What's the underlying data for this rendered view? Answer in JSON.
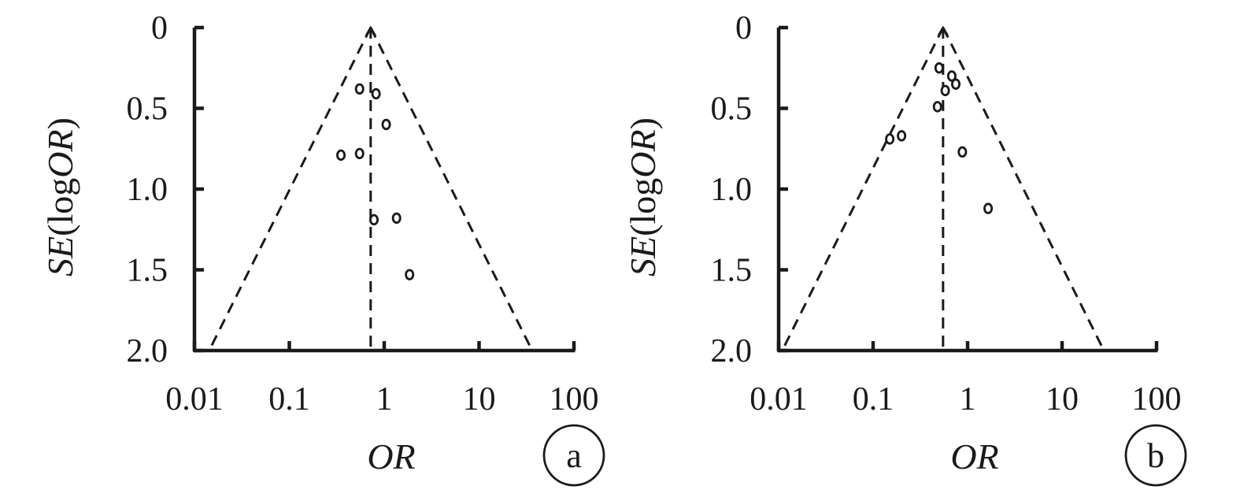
{
  "chart_data": [
    {
      "type": "scatter",
      "panel_label": "a",
      "xlabel": "OR",
      "ylabel": {
        "prefix": "SE",
        "open": "(",
        "log": "log",
        "var": "OR",
        "close": ")"
      },
      "x_scale": "log",
      "xlim": [
        0.01,
        100
      ],
      "ylim": [
        0,
        2.0
      ],
      "y_inverted": true,
      "xticks": [
        0.01,
        0.1,
        1,
        10,
        100
      ],
      "xtick_labels": [
        "0.01",
        "0.1",
        "1",
        "10",
        "100"
      ],
      "yticks": [
        0,
        0.5,
        1.0,
        1.5,
        2.0
      ],
      "ytick_labels": [
        "0",
        "0.5",
        "1.0",
        "1.5",
        "2.0"
      ],
      "pooled_or": 0.72,
      "funnel_apex_se": 0,
      "funnel_base_se": 2.0,
      "funnel_style": "dashed",
      "grid": false,
      "points": [
        {
          "x": 0.55,
          "y": 0.38
        },
        {
          "x": 0.82,
          "y": 0.41
        },
        {
          "x": 1.05,
          "y": 0.6
        },
        {
          "x": 0.35,
          "y": 0.79
        },
        {
          "x": 0.55,
          "y": 0.78
        },
        {
          "x": 0.78,
          "y": 1.19
        },
        {
          "x": 1.35,
          "y": 1.18
        },
        {
          "x": 1.85,
          "y": 1.53
        }
      ]
    },
    {
      "type": "scatter",
      "panel_label": "b",
      "xlabel": "OR",
      "ylabel": {
        "prefix": "SE",
        "open": "(",
        "log": "log",
        "var": "OR",
        "close": ")"
      },
      "x_scale": "log",
      "xlim": [
        0.01,
        100
      ],
      "ylim": [
        0,
        2.0
      ],
      "y_inverted": true,
      "xticks": [
        0.01,
        0.1,
        1,
        10,
        100
      ],
      "xtick_labels": [
        "0.01",
        "0.1",
        "1",
        "10",
        "100"
      ],
      "yticks": [
        0,
        0.5,
        1.0,
        1.5,
        2.0
      ],
      "ytick_labels": [
        "0",
        "0.5",
        "1.0",
        "1.5",
        "2.0"
      ],
      "pooled_or": 0.55,
      "funnel_apex_se": 0,
      "funnel_base_se": 2.0,
      "funnel_style": "dashed",
      "grid": false,
      "points": [
        {
          "x": 0.5,
          "y": 0.25
        },
        {
          "x": 0.68,
          "y": 0.3
        },
        {
          "x": 0.75,
          "y": 0.35
        },
        {
          "x": 0.58,
          "y": 0.39
        },
        {
          "x": 0.48,
          "y": 0.49
        },
        {
          "x": 0.2,
          "y": 0.67
        },
        {
          "x": 0.15,
          "y": 0.69
        },
        {
          "x": 0.88,
          "y": 0.77
        },
        {
          "x": 1.65,
          "y": 1.12
        }
      ]
    }
  ]
}
